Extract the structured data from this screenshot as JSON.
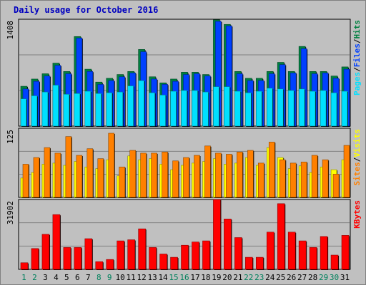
{
  "title": "Daily usage for October 2016",
  "colors": {
    "background": "#c0c0c0",
    "title": "#0000c0",
    "hits": "#008040",
    "files": "#0040ff",
    "pages": "#00e0ff",
    "visits": "#ffff00",
    "sites": "#ff8000",
    "kbytes": "#ff0000",
    "weekend_label": "#00805c"
  },
  "chart_data": [
    {
      "type": "bar",
      "panel": "hits-files-pages",
      "ylabel_max": "1408",
      "ylim": [
        0,
        1408
      ],
      "x": [
        "1",
        "2",
        "3",
        "4",
        "5",
        "6",
        "7",
        "8",
        "9",
        "10",
        "11",
        "12",
        "13",
        "14",
        "15",
        "16",
        "17",
        "18",
        "19",
        "20",
        "21",
        "22",
        "23",
        "24",
        "25",
        "26",
        "27",
        "28",
        "29",
        "30",
        "31"
      ],
      "legend": [
        "Pages",
        "/",
        "Files",
        "/",
        "Hits"
      ],
      "series": [
        {
          "name": "Hits",
          "values": [
            525,
            620,
            690,
            830,
            720,
            1180,
            750,
            580,
            630,
            680,
            720,
            1010,
            650,
            570,
            620,
            710,
            710,
            680,
            1400,
            1340,
            720,
            630,
            630,
            720,
            840,
            720,
            1050,
            720,
            720,
            660,
            780
          ]
        },
        {
          "name": "Files",
          "values": [
            490,
            590,
            660,
            800,
            690,
            1160,
            720,
            550,
            600,
            650,
            700,
            980,
            620,
            550,
            590,
            680,
            690,
            660,
            1380,
            1320,
            690,
            600,
            600,
            690,
            810,
            700,
            1020,
            690,
            700,
            630,
            750
          ]
        },
        {
          "name": "Pages",
          "values": [
            360,
            400,
            450,
            540,
            420,
            430,
            460,
            430,
            440,
            450,
            530,
            600,
            440,
            410,
            460,
            470,
            470,
            450,
            520,
            520,
            460,
            440,
            460,
            500,
            490,
            470,
            490,
            460,
            470,
            440,
            460
          ]
        }
      ]
    },
    {
      "type": "bar",
      "panel": "visits-sites",
      "ylabel_max": "125",
      "ylim": [
        0,
        125
      ],
      "x": [
        "1",
        "2",
        "3",
        "4",
        "5",
        "6",
        "7",
        "8",
        "9",
        "10",
        "11",
        "12",
        "13",
        "14",
        "15",
        "16",
        "17",
        "18",
        "19",
        "20",
        "21",
        "22",
        "23",
        "24",
        "25",
        "26",
        "27",
        "28",
        "29",
        "30",
        "31"
      ],
      "legend": [
        "Sites",
        "/",
        "Visits"
      ],
      "series": [
        {
          "name": "Visits",
          "values": [
            35,
            45,
            60,
            62,
            58,
            65,
            55,
            52,
            68,
            39,
            75,
            68,
            70,
            60,
            50,
            58,
            62,
            65,
            70,
            60,
            62,
            72,
            58,
            90,
            72,
            52,
            57,
            45,
            55,
            50,
            68
          ]
        },
        {
          "name": "Sites",
          "values": [
            60,
            72,
            90,
            80,
            110,
            76,
            88,
            70,
            116,
            55,
            85,
            80,
            80,
            82,
            66,
            72,
            76,
            93,
            80,
            78,
            82,
            85,
            62,
            100,
            68,
            62,
            64,
            76,
            68,
            42,
            94
          ]
        }
      ]
    },
    {
      "type": "bar",
      "panel": "kbytes",
      "ylabel_max": "31902",
      "ylim": [
        0,
        31902
      ],
      "x": [
        "1",
        "2",
        "3",
        "4",
        "5",
        "6",
        "7",
        "8",
        "9",
        "10",
        "11",
        "12",
        "13",
        "14",
        "15",
        "16",
        "17",
        "18",
        "19",
        "20",
        "21",
        "22",
        "23",
        "24",
        "25",
        "26",
        "27",
        "28",
        "29",
        "30",
        "31"
      ],
      "legend": [
        "KBytes"
      ],
      "series": [
        {
          "name": "KBytes",
          "values": [
            3000,
            9500,
            16000,
            25000,
            10000,
            10000,
            14000,
            3500,
            4500,
            13000,
            13500,
            18500,
            10000,
            7000,
            5500,
            11000,
            12500,
            13000,
            31902,
            23000,
            14500,
            5500,
            5500,
            17000,
            30000,
            17000,
            13000,
            10000,
            15000,
            6500,
            15500
          ]
        }
      ]
    }
  ],
  "x_axis": {
    "labels": [
      "1",
      "2",
      "3",
      "4",
      "5",
      "6",
      "7",
      "8",
      "9",
      "10",
      "11",
      "12",
      "13",
      "14",
      "15",
      "16",
      "17",
      "18",
      "19",
      "20",
      "21",
      "22",
      "23",
      "24",
      "25",
      "26",
      "27",
      "28",
      "29",
      "30",
      "31"
    ],
    "weekend_days": [
      "1",
      "2",
      "8",
      "9",
      "15",
      "16",
      "22",
      "23",
      "29",
      "30"
    ]
  }
}
